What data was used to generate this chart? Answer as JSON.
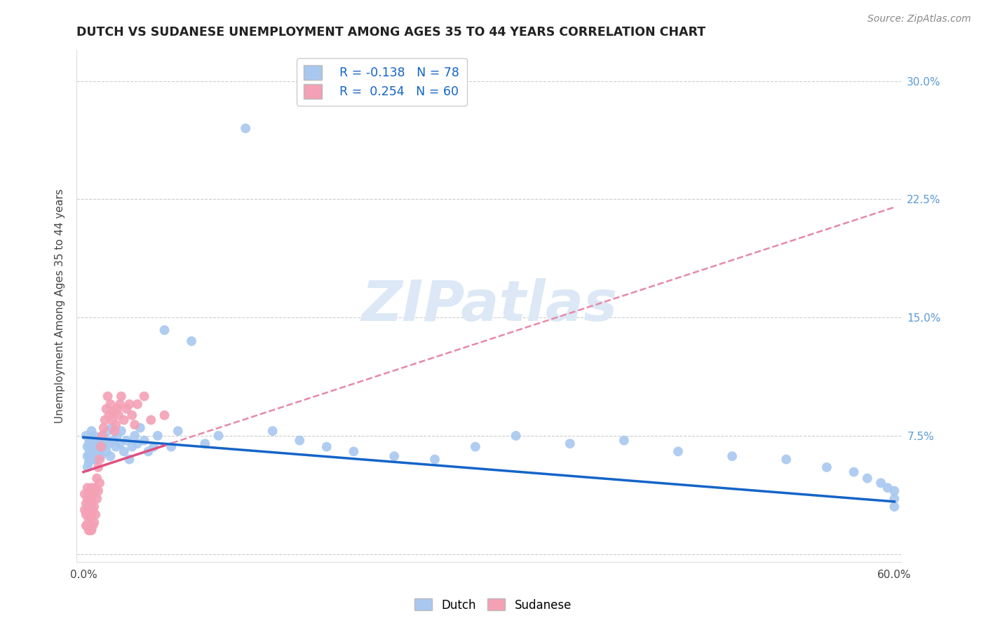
{
  "title": "DUTCH VS SUDANESE UNEMPLOYMENT AMONG AGES 35 TO 44 YEARS CORRELATION CHART",
  "source": "Source: ZipAtlas.com",
  "ylabel": "Unemployment Among Ages 35 to 44 years",
  "xlim": [
    -0.005,
    0.605
  ],
  "ylim": [
    -0.005,
    0.32
  ],
  "ytick_positions": [
    0.0,
    0.075,
    0.15,
    0.225,
    0.3
  ],
  "ytick_labels_right": [
    "",
    "7.5%",
    "15.0%",
    "22.5%",
    "30.0%"
  ],
  "xtick_positions": [
    0.0,
    0.1,
    0.2,
    0.3,
    0.4,
    0.5,
    0.6
  ],
  "xtick_labels": [
    "0.0%",
    "",
    "",
    "",
    "",
    "",
    "60.0%"
  ],
  "dutch_R": -0.138,
  "dutch_N": 78,
  "sudanese_R": 0.254,
  "sudanese_N": 60,
  "dutch_color": "#a8c8f0",
  "sudanese_color": "#f4a0b5",
  "dutch_trend_color": "#1464c8",
  "sudanese_trend_solid_color": "#e05080",
  "sudanese_trend_dashed_color": "#e888a8",
  "background_color": "#ffffff",
  "watermark_text": "ZIPatlas",
  "legend_dutch": "Dutch",
  "legend_sudanese": "Sudanese",
  "dutch_line_intercept": 0.074,
  "dutch_line_slope": -0.068,
  "sudanese_line_intercept": 0.052,
  "sudanese_line_slope": 0.28,
  "dutch_x": [
    0.002,
    0.003,
    0.003,
    0.003,
    0.004,
    0.004,
    0.004,
    0.005,
    0.005,
    0.005,
    0.006,
    0.006,
    0.006,
    0.007,
    0.007,
    0.007,
    0.008,
    0.008,
    0.009,
    0.009,
    0.01,
    0.01,
    0.011,
    0.012,
    0.013,
    0.013,
    0.014,
    0.015,
    0.016,
    0.017,
    0.018,
    0.019,
    0.02,
    0.021,
    0.022,
    0.024,
    0.025,
    0.027,
    0.028,
    0.03,
    0.032,
    0.034,
    0.036,
    0.038,
    0.04,
    0.042,
    0.045,
    0.048,
    0.052,
    0.055,
    0.06,
    0.065,
    0.07,
    0.08,
    0.09,
    0.1,
    0.12,
    0.14,
    0.16,
    0.18,
    0.2,
    0.23,
    0.26,
    0.29,
    0.32,
    0.36,
    0.4,
    0.44,
    0.48,
    0.52,
    0.55,
    0.57,
    0.58,
    0.59,
    0.595,
    0.6,
    0.6,
    0.6
  ],
  "dutch_y": [
    0.075,
    0.068,
    0.062,
    0.055,
    0.07,
    0.063,
    0.058,
    0.072,
    0.065,
    0.06,
    0.078,
    0.068,
    0.062,
    0.073,
    0.067,
    0.06,
    0.075,
    0.065,
    0.07,
    0.06,
    0.072,
    0.063,
    0.068,
    0.065,
    0.07,
    0.062,
    0.075,
    0.068,
    0.073,
    0.065,
    0.078,
    0.07,
    0.062,
    0.08,
    0.072,
    0.068,
    0.075,
    0.07,
    0.078,
    0.065,
    0.072,
    0.06,
    0.068,
    0.075,
    0.07,
    0.08,
    0.072,
    0.065,
    0.068,
    0.075,
    0.142,
    0.068,
    0.078,
    0.135,
    0.07,
    0.075,
    0.27,
    0.078,
    0.072,
    0.068,
    0.065,
    0.062,
    0.06,
    0.068,
    0.075,
    0.07,
    0.072,
    0.065,
    0.062,
    0.06,
    0.055,
    0.052,
    0.048,
    0.045,
    0.042,
    0.04,
    0.035,
    0.03
  ],
  "sudanese_x": [
    0.001,
    0.001,
    0.002,
    0.002,
    0.002,
    0.003,
    0.003,
    0.003,
    0.003,
    0.004,
    0.004,
    0.004,
    0.004,
    0.005,
    0.005,
    0.005,
    0.005,
    0.006,
    0.006,
    0.006,
    0.006,
    0.007,
    0.007,
    0.007,
    0.008,
    0.008,
    0.008,
    0.009,
    0.009,
    0.01,
    0.01,
    0.011,
    0.011,
    0.012,
    0.012,
    0.013,
    0.014,
    0.015,
    0.016,
    0.017,
    0.018,
    0.019,
    0.02,
    0.021,
    0.022,
    0.023,
    0.024,
    0.025,
    0.026,
    0.027,
    0.028,
    0.03,
    0.032,
    0.034,
    0.036,
    0.038,
    0.04,
    0.045,
    0.05,
    0.06
  ],
  "sudanese_y": [
    0.038,
    0.028,
    0.032,
    0.025,
    0.018,
    0.042,
    0.035,
    0.028,
    0.018,
    0.038,
    0.03,
    0.022,
    0.015,
    0.04,
    0.032,
    0.024,
    0.015,
    0.042,
    0.033,
    0.025,
    0.015,
    0.038,
    0.028,
    0.018,
    0.04,
    0.03,
    0.02,
    0.042,
    0.025,
    0.048,
    0.035,
    0.055,
    0.04,
    0.06,
    0.045,
    0.068,
    0.075,
    0.08,
    0.085,
    0.092,
    0.1,
    0.088,
    0.095,
    0.085,
    0.09,
    0.078,
    0.082,
    0.092,
    0.088,
    0.095,
    0.1,
    0.085,
    0.092,
    0.095,
    0.088,
    0.082,
    0.095,
    0.1,
    0.085,
    0.088
  ]
}
